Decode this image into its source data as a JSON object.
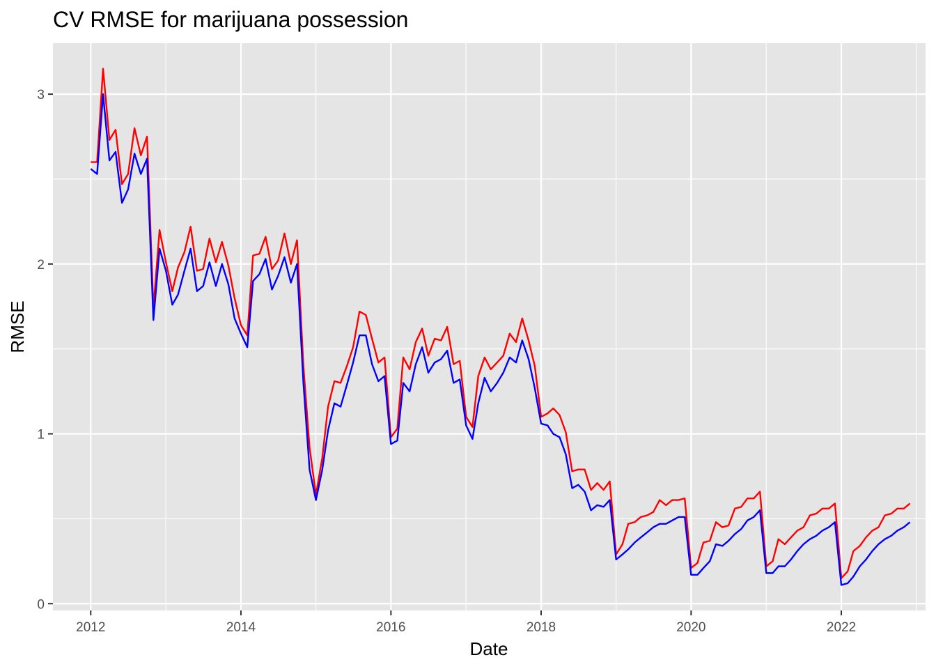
{
  "chart_data": {
    "type": "line",
    "title": "CV RMSE for marijuana possession",
    "xlabel": "Date",
    "ylabel": "RMSE",
    "x_ticks": [
      "2012",
      "2014",
      "2016",
      "2018",
      "2020",
      "2022"
    ],
    "y_ticks": [
      "0",
      "1",
      "2",
      "3"
    ],
    "xlim": [
      "2011-07-01",
      "2023-02-15"
    ],
    "ylim": [
      -0.04,
      3.3
    ],
    "grid": true,
    "legend": "none",
    "colors": {
      "panel_bg": "#e5e5e5",
      "grid": "#ffffff",
      "tick": "#4d4d4d"
    },
    "x": [
      "2012-01",
      "2012-02",
      "2012-03",
      "2012-04",
      "2012-05",
      "2012-06",
      "2012-07",
      "2012-08",
      "2012-09",
      "2012-10",
      "2012-11",
      "2012-12",
      "2013-01",
      "2013-02",
      "2013-03",
      "2013-04",
      "2013-05",
      "2013-06",
      "2013-07",
      "2013-08",
      "2013-09",
      "2013-10",
      "2013-11",
      "2013-12",
      "2014-01",
      "2014-02",
      "2014-03",
      "2014-04",
      "2014-05",
      "2014-06",
      "2014-07",
      "2014-08",
      "2014-09",
      "2014-10",
      "2014-11",
      "2014-12",
      "2015-01",
      "2015-02",
      "2015-03",
      "2015-04",
      "2015-05",
      "2015-06",
      "2015-07",
      "2015-08",
      "2015-09",
      "2015-10",
      "2015-11",
      "2015-12",
      "2016-01",
      "2016-02",
      "2016-03",
      "2016-04",
      "2016-05",
      "2016-06",
      "2016-07",
      "2016-08",
      "2016-09",
      "2016-10",
      "2016-11",
      "2016-12",
      "2017-01",
      "2017-02",
      "2017-03",
      "2017-04",
      "2017-05",
      "2017-06",
      "2017-07",
      "2017-08",
      "2017-09",
      "2017-10",
      "2017-11",
      "2017-12",
      "2018-01",
      "2018-02",
      "2018-03",
      "2018-04",
      "2018-05",
      "2018-06",
      "2018-07",
      "2018-08",
      "2018-09",
      "2018-10",
      "2018-11",
      "2018-12",
      "2019-01",
      "2019-02",
      "2019-03",
      "2019-04",
      "2019-05",
      "2019-06",
      "2019-07",
      "2019-08",
      "2019-09",
      "2019-10",
      "2019-11",
      "2019-12",
      "2020-01",
      "2020-02",
      "2020-03",
      "2020-04",
      "2020-05",
      "2020-06",
      "2020-07",
      "2020-08",
      "2020-09",
      "2020-10",
      "2020-11",
      "2020-12",
      "2021-01",
      "2021-02",
      "2021-03",
      "2021-04",
      "2021-05",
      "2021-06",
      "2021-07",
      "2021-08",
      "2021-09",
      "2021-10",
      "2021-11",
      "2021-12",
      "2022-01",
      "2022-02",
      "2022-03",
      "2022-04",
      "2022-05",
      "2022-06",
      "2022-07",
      "2022-08",
      "2022-09",
      "2022-10",
      "2022-11",
      "2022-12"
    ],
    "series": [
      {
        "color": "#ff0000",
        "values": [
          2.6,
          2.6,
          3.15,
          2.73,
          2.79,
          2.47,
          2.53,
          2.8,
          2.64,
          2.75,
          1.74,
          2.2,
          2.01,
          1.84,
          1.98,
          2.07,
          2.22,
          1.96,
          1.97,
          2.15,
          2.01,
          2.13,
          1.99,
          1.8,
          1.64,
          1.58,
          2.05,
          2.06,
          2.16,
          1.97,
          2.02,
          2.18,
          2.0,
          2.14,
          1.4,
          0.92,
          0.64,
          0.86,
          1.16,
          1.31,
          1.3,
          1.4,
          1.51,
          1.72,
          1.7,
          1.56,
          1.42,
          1.45,
          0.98,
          1.03,
          1.45,
          1.38,
          1.54,
          1.62,
          1.46,
          1.56,
          1.55,
          1.63,
          1.41,
          1.43,
          1.1,
          1.04,
          1.34,
          1.45,
          1.38,
          1.42,
          1.46,
          1.59,
          1.54,
          1.68,
          1.55,
          1.4,
          1.1,
          1.12,
          1.15,
          1.11,
          1.01,
          0.78,
          0.79,
          0.79,
          0.67,
          0.71,
          0.67,
          0.72,
          0.29,
          0.35,
          0.47,
          0.48,
          0.51,
          0.52,
          0.54,
          0.61,
          0.58,
          0.61,
          0.61,
          0.62,
          0.21,
          0.24,
          0.36,
          0.37,
          0.48,
          0.45,
          0.46,
          0.56,
          0.57,
          0.62,
          0.62,
          0.66,
          0.22,
          0.25,
          0.38,
          0.35,
          0.39,
          0.43,
          0.45,
          0.52,
          0.53,
          0.56,
          0.56,
          0.59,
          0.15,
          0.19,
          0.31,
          0.34,
          0.39,
          0.43,
          0.45,
          0.52,
          0.53,
          0.56,
          0.56,
          0.59
        ]
      },
      {
        "color": "#0000ff",
        "values": [
          2.56,
          2.53,
          3.0,
          2.61,
          2.66,
          2.36,
          2.44,
          2.65,
          2.53,
          2.62,
          1.67,
          2.09,
          1.96,
          1.76,
          1.82,
          1.96,
          2.09,
          1.84,
          1.87,
          2.01,
          1.87,
          2.0,
          1.88,
          1.68,
          1.59,
          1.51,
          1.9,
          1.94,
          2.03,
          1.85,
          1.93,
          2.04,
          1.89,
          2.0,
          1.3,
          0.79,
          0.61,
          0.79,
          1.02,
          1.18,
          1.16,
          1.29,
          1.42,
          1.58,
          1.58,
          1.41,
          1.31,
          1.34,
          0.94,
          0.96,
          1.3,
          1.25,
          1.41,
          1.51,
          1.36,
          1.42,
          1.44,
          1.49,
          1.3,
          1.32,
          1.05,
          0.97,
          1.18,
          1.33,
          1.25,
          1.3,
          1.36,
          1.45,
          1.42,
          1.55,
          1.44,
          1.27,
          1.06,
          1.05,
          1.0,
          0.98,
          0.88,
          0.68,
          0.7,
          0.66,
          0.55,
          0.58,
          0.57,
          0.61,
          0.26,
          0.29,
          0.32,
          0.36,
          0.39,
          0.42,
          0.45,
          0.47,
          0.47,
          0.49,
          0.51,
          0.51,
          0.17,
          0.17,
          0.21,
          0.25,
          0.35,
          0.34,
          0.37,
          0.41,
          0.44,
          0.49,
          0.51,
          0.55,
          0.18,
          0.18,
          0.22,
          0.22,
          0.26,
          0.31,
          0.35,
          0.38,
          0.4,
          0.43,
          0.45,
          0.48,
          0.11,
          0.12,
          0.16,
          0.22,
          0.26,
          0.31,
          0.35,
          0.38,
          0.4,
          0.43,
          0.45,
          0.48
        ]
      }
    ]
  }
}
